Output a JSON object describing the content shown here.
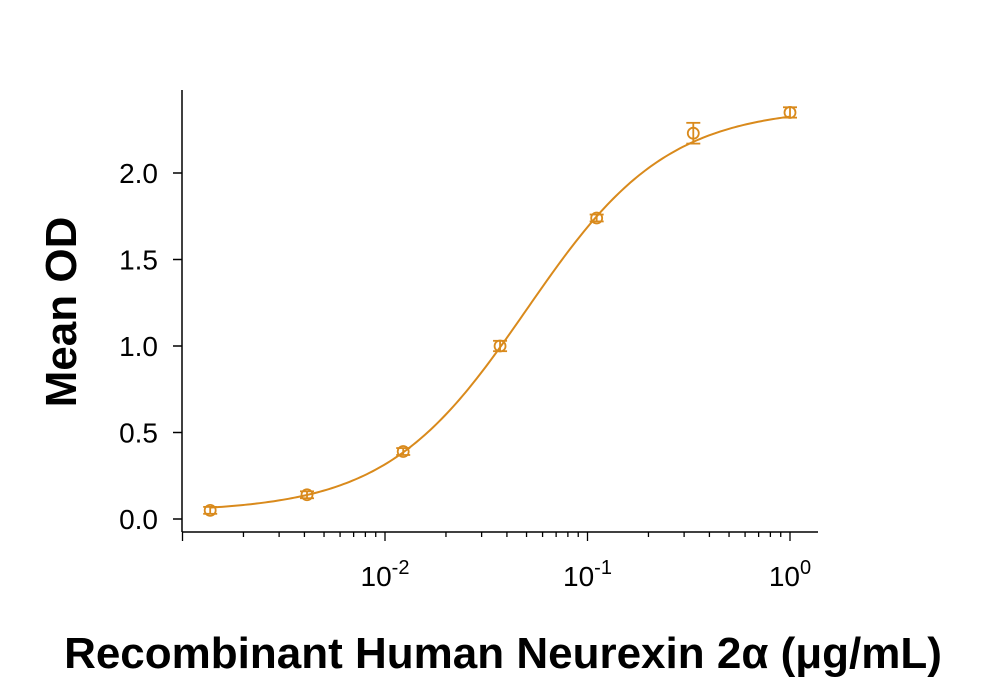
{
  "chart_data": {
    "type": "scatter",
    "title": "",
    "xlabel": "Recombinant Human Neurexin 2α (μg/mL)",
    "ylabel": "Mean OD",
    "xscale": "log",
    "xlim": [
      0.001,
      1.2
    ],
    "ylim": [
      0.0,
      2.45
    ],
    "grid": false,
    "legend": "none",
    "color": "#D98A1C",
    "x_ticks": [
      {
        "value": 0.01,
        "base": "10",
        "exp": "-2"
      },
      {
        "value": 0.1,
        "base": "10",
        "exp": "-1"
      },
      {
        "value": 1,
        "base": "10",
        "exp": "0"
      }
    ],
    "y_ticks": [
      {
        "value": 0.0,
        "label": "0.0"
      },
      {
        "value": 0.5,
        "label": "0.5"
      },
      {
        "value": 1.0,
        "label": "1.0"
      },
      {
        "value": 1.5,
        "label": "1.5"
      },
      {
        "value": 2.0,
        "label": "2.0"
      }
    ],
    "series": [
      {
        "x": [
          0.00137,
          0.00412,
          0.0123,
          0.037,
          0.111,
          0.333,
          1.0
        ],
        "y": [
          0.05,
          0.14,
          0.39,
          1.0,
          1.74,
          2.23,
          2.35
        ],
        "error": [
          0.02,
          0.02,
          0.02,
          0.03,
          0.02,
          0.06,
          0.03
        ]
      }
    ],
    "fit_curve": {
      "model": "4PL",
      "bottom": 0.04,
      "top": 2.38,
      "ec50": 0.05,
      "hill": 1.25
    }
  }
}
